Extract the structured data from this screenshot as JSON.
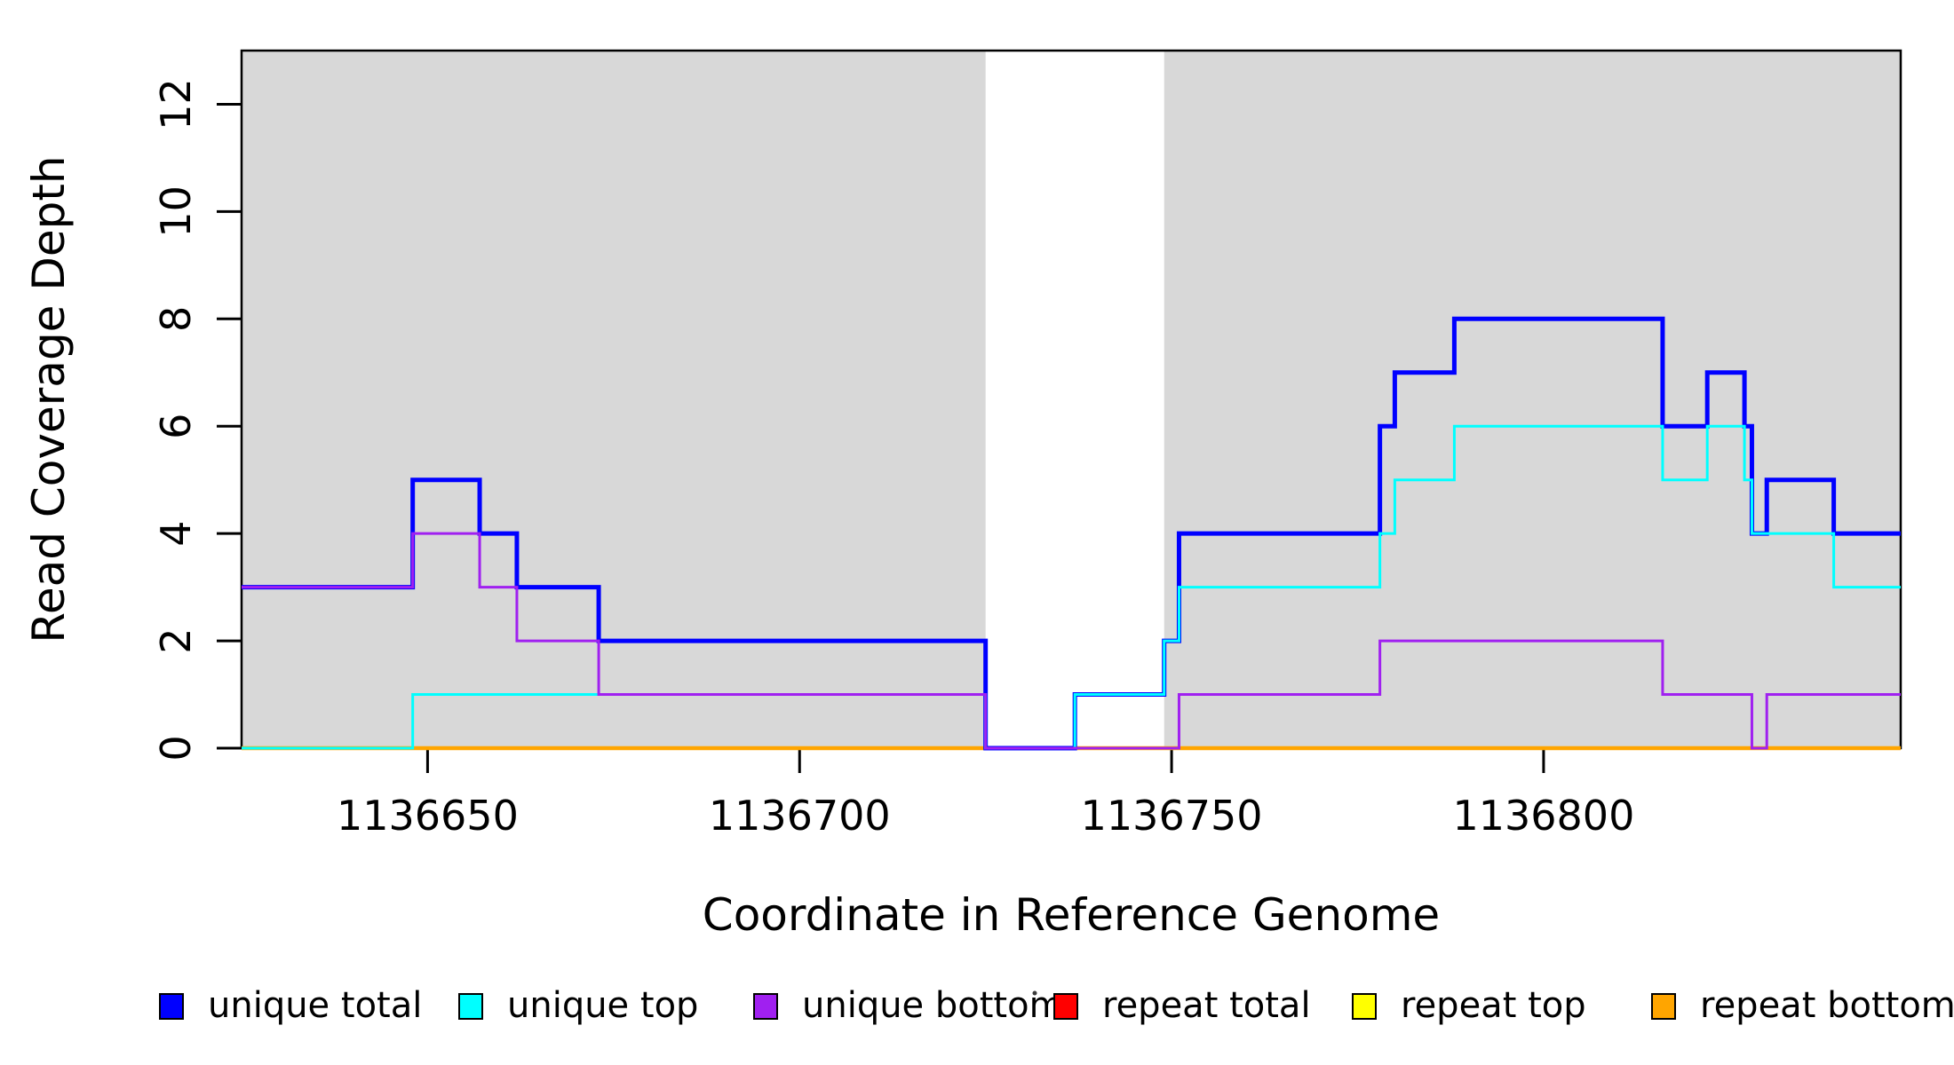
{
  "chart_data": {
    "type": "step-line",
    "title": "",
    "xlabel": "Coordinate in Reference Genome",
    "ylabel": "Read Coverage Depth",
    "xlim": [
      1136625,
      1136848
    ],
    "ylim": [
      0,
      13
    ],
    "x_ticks": [
      1136650,
      1136700,
      1136750,
      1136800
    ],
    "x_tick_labels": [
      "1136650",
      "1136700",
      "1136750",
      "1136800"
    ],
    "y_ticks": [
      0,
      2,
      4,
      6,
      8,
      10,
      12
    ],
    "y_tick_labels": [
      "0",
      "2",
      "4",
      "6",
      "8",
      "10",
      "12"
    ],
    "grid": false,
    "background_color": "#ffffff",
    "shaded_region_color": "#d8d8d8",
    "shaded_regions": [
      {
        "start": 1136625,
        "end": 1136725
      },
      {
        "start": 1136749,
        "end": 1136848
      }
    ],
    "series": [
      {
        "name": "unique total",
        "color": "#0000ff",
        "line_width": 5,
        "steps": [
          [
            1136625,
            3
          ],
          [
            1136648,
            5
          ],
          [
            1136657,
            4
          ],
          [
            1136662,
            3
          ],
          [
            1136673,
            2
          ],
          [
            1136725,
            0
          ],
          [
            1136737,
            1
          ],
          [
            1136749,
            2
          ],
          [
            1136751,
            4
          ],
          [
            1136778,
            6
          ],
          [
            1136780,
            7
          ],
          [
            1136788,
            8
          ],
          [
            1136816,
            6
          ],
          [
            1136822,
            7
          ],
          [
            1136827,
            6
          ],
          [
            1136828,
            4
          ],
          [
            1136830,
            5
          ],
          [
            1136839,
            4
          ]
        ],
        "end": 1136848
      },
      {
        "name": "unique top",
        "color": "#00ffff",
        "line_width": 3,
        "steps": [
          [
            1136625,
            0
          ],
          [
            1136648,
            1
          ],
          [
            1136725,
            0
          ],
          [
            1136737,
            1
          ],
          [
            1136749,
            2
          ],
          [
            1136751,
            3
          ],
          [
            1136778,
            4
          ],
          [
            1136780,
            5
          ],
          [
            1136788,
            6
          ],
          [
            1136816,
            5
          ],
          [
            1136822,
            6
          ],
          [
            1136827,
            5
          ],
          [
            1136828,
            4
          ],
          [
            1136839,
            3
          ]
        ],
        "end": 1136848
      },
      {
        "name": "unique bottom",
        "color": "#a020f0",
        "line_width": 3,
        "steps": [
          [
            1136625,
            3
          ],
          [
            1136648,
            4
          ],
          [
            1136657,
            3
          ],
          [
            1136662,
            2
          ],
          [
            1136673,
            1
          ],
          [
            1136725,
            0
          ],
          [
            1136751,
            1
          ],
          [
            1136778,
            2
          ],
          [
            1136816,
            1
          ],
          [
            1136828,
            0
          ],
          [
            1136830,
            1
          ]
        ],
        "end": 1136848
      },
      {
        "name": "repeat total",
        "color": "#ff0000",
        "line_width": 3,
        "steps": [
          [
            1136625,
            0
          ]
        ],
        "end": 1136848
      },
      {
        "name": "repeat top",
        "color": "#ffff00",
        "line_width": 3.5,
        "steps": [
          [
            1136625,
            0
          ]
        ],
        "end": 1136848
      },
      {
        "name": "repeat bottom",
        "color": "#ffa500",
        "line_width": 4.5,
        "steps": [
          [
            1136625,
            0
          ]
        ],
        "end": 1136848
      }
    ],
    "draw_order": [
      3,
      4,
      5,
      0,
      1,
      2
    ],
    "legend": {
      "position": "bottom",
      "entries": [
        "unique total",
        "unique top",
        "unique bottom",
        "repeat total",
        "repeat top",
        "repeat bottom"
      ]
    }
  }
}
